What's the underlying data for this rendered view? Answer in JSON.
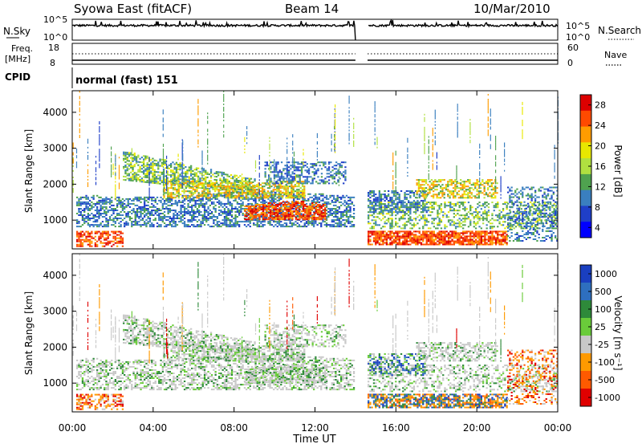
{
  "header": {
    "station": "Syowa East (fitACF)",
    "beam": "Beam 14",
    "date": "10/Mar/2010"
  },
  "top_panels": {
    "nsky_label": "N.Sky",
    "nsearch_label": "N.Search",
    "noise_ticks_left": [
      "10^5",
      "10^0"
    ],
    "noise_ticks_right": [
      "10^5",
      "10^0"
    ],
    "freq_label_line1": "Freq.",
    "freq_label_line2": "[MHz]",
    "freq_ticks": [
      "18",
      "8"
    ],
    "nave_label": "Nave",
    "nave_ticks": [
      "60",
      "0"
    ],
    "cpid_label": "CPID",
    "cpid_text": "normal (fast) 151"
  },
  "chart_data": [
    {
      "type": "heatmap",
      "panel": "power",
      "ylabel": "Slant Range [km]",
      "yticks": [
        "1000",
        "2000",
        "3000",
        "4000"
      ],
      "ylim": [
        200,
        4600
      ],
      "xlim_hours": [
        0,
        24
      ],
      "data_gap_hours": [
        14.0,
        14.6
      ],
      "colorbar_label": "Power [dB]",
      "colorbar_ticks": [
        "28",
        "24",
        "20",
        "16",
        "12",
        "8",
        "4"
      ],
      "colorbar_colors": [
        "#dd0000",
        "#ff4a00",
        "#ff9c00",
        "#e8e800",
        "#b0e040",
        "#4fa24f",
        "#3a7fbf",
        "#1f3fc8",
        "#0000ff"
      ]
    },
    {
      "type": "heatmap",
      "panel": "velocity",
      "ylabel": "Slant Range [km]",
      "yticks": [
        "1000",
        "2000",
        "3000",
        "4000"
      ],
      "ylim": [
        200,
        4600
      ],
      "xlim_hours": [
        0,
        24
      ],
      "data_gap_hours": [
        14.0,
        14.6
      ],
      "colorbar_label": "Velocity [m s⁻¹]",
      "colorbar_ticks": [
        "1000",
        "500",
        "100",
        "25",
        "-25",
        "-100",
        "-500",
        "-1000"
      ],
      "colorbar_colors": [
        "#1a3fc0",
        "#2e6fbf",
        "#2e8a3a",
        "#6acc3a",
        "#c8c8c8",
        "#ff9a00",
        "#ff5a00",
        "#e00000"
      ]
    }
  ],
  "xaxis": {
    "label": "Time UT",
    "ticks": [
      "00:00",
      "04:00",
      "08:00",
      "12:00",
      "16:00",
      "20:00",
      "00:00"
    ]
  }
}
